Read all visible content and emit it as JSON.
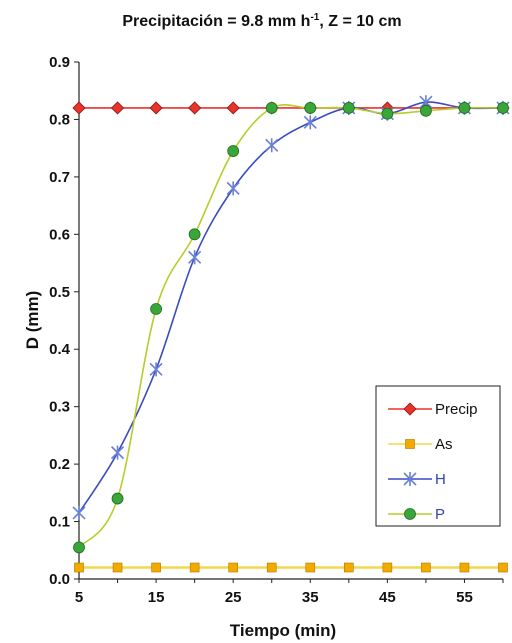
{
  "chart_data": {
    "type": "line",
    "title_parts": {
      "pre": "Precipitación = 9.8 mm h",
      "sup": "-1",
      "post": ", Z = 10 cm"
    },
    "xlabel": "Tiempo (min)",
    "ylabel": "D (mm)",
    "xlim": [
      5,
      60
    ],
    "ylim": [
      0.0,
      0.9
    ],
    "xticks": [
      5,
      15,
      25,
      35,
      45,
      55
    ],
    "xtick_labels": [
      "5",
      "15",
      "25",
      "35",
      "45",
      "55"
    ],
    "yticks": [
      0.0,
      0.1,
      0.2,
      0.3,
      0.4,
      0.5,
      0.6,
      0.7,
      0.8,
      0.9
    ],
    "ytick_labels": [
      "0.0",
      "0.1",
      "0.2",
      "0.3",
      "0.4",
      "0.5",
      "0.6",
      "0.7",
      "0.8",
      "0.9"
    ],
    "grid": false,
    "legend_position": "bottom-right",
    "x": [
      5,
      10,
      15,
      20,
      25,
      30,
      35,
      40,
      45,
      50,
      55,
      60
    ],
    "series": [
      {
        "name": "Precip",
        "color": "#e8322a",
        "marker": "diamond",
        "values": [
          0.82,
          0.82,
          0.82,
          0.82,
          0.82,
          0.82,
          0.82,
          0.82,
          0.82,
          0.82,
          0.82,
          0.82
        ]
      },
      {
        "name": "As",
        "color": "#f2a900",
        "marker": "square",
        "line_color": "#f5d84a",
        "values": [
          0.02,
          0.02,
          0.02,
          0.02,
          0.02,
          0.02,
          0.02,
          0.02,
          0.02,
          0.02,
          0.02,
          0.02
        ]
      },
      {
        "name": "H",
        "color": "#6a7fd6",
        "marker": "star",
        "line_color": "#3b4cc0",
        "values": [
          0.115,
          0.22,
          0.365,
          0.56,
          0.68,
          0.755,
          0.795,
          0.82,
          0.81,
          0.83,
          0.82,
          0.82
        ]
      },
      {
        "name": "P",
        "color": "#3aa63a",
        "marker": "circle",
        "line_color": "#b8cc2a",
        "values": [
          0.055,
          0.14,
          0.47,
          0.6,
          0.745,
          0.82,
          0.82,
          0.82,
          0.81,
          0.815,
          0.82,
          0.82
        ]
      }
    ]
  }
}
